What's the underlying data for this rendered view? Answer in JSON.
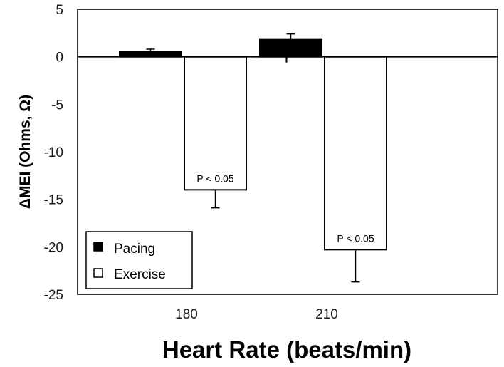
{
  "chart_data": {
    "type": "bar",
    "categories": [
      "180",
      "210"
    ],
    "series": [
      {
        "name": "Pacing",
        "values": [
          0.5,
          1.8
        ],
        "errors": [
          0.3,
          0.6
        ],
        "color": "#000000"
      },
      {
        "name": "Exercise",
        "values": [
          -14.0,
          -20.3
        ],
        "errors": [
          1.9,
          3.4
        ],
        "color": "#ffffff"
      }
    ],
    "annotations": [
      {
        "category": "180",
        "series": "Exercise",
        "text": "P < 0.05"
      },
      {
        "category": "210",
        "series": "Exercise",
        "text": "P < 0.05"
      }
    ],
    "title": "",
    "xlabel": "Heart Rate (beats/min)",
    "ylabel": "ΔMEI (Ohms, Ω)",
    "ylim": [
      -25,
      5
    ],
    "yticks": [
      5,
      0,
      -5,
      -10,
      -15,
      -20,
      -25
    ],
    "grid": false,
    "legend": "bottom-left"
  }
}
